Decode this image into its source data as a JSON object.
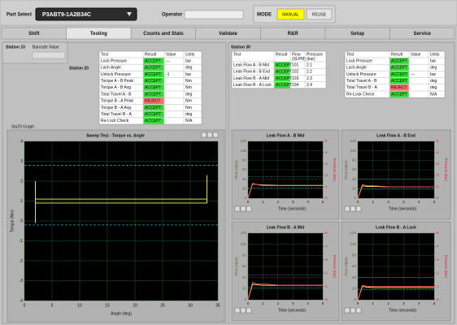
{
  "header": {
    "part_select_label": "Part Select",
    "part_number": "P3ABT9-1A2B34C",
    "operator_label": "Operator",
    "mode_label": "MODE",
    "mode_buttons": [
      "MANUAL",
      "REUSE"
    ]
  },
  "tabs": [
    "Shift",
    "Testing",
    "Counts and Stats",
    "Validate",
    "R&R",
    "Setup",
    "Service"
  ],
  "active_tab": 1,
  "station10": {
    "title": "Station 10",
    "barcode_label": "Barcode Value"
  },
  "station20": {
    "title": "Station 20",
    "table": {
      "columns": [
        "Test",
        "Result",
        "Value",
        "Units"
      ],
      "rows": [
        [
          "Lock Pressure",
          "ACCEPT",
          "---",
          "bar"
        ],
        [
          "Lach Angle",
          "ACCEPT",
          null,
          "deg"
        ],
        [
          "Unlock Pressure",
          "ACCEPT",
          "-1",
          "bar"
        ],
        [
          "Torque A - B Peak",
          "ACCEPT",
          null,
          "Nm"
        ],
        [
          "Torque A - B Avg.",
          "ACCEPT",
          null,
          "Nm"
        ],
        [
          "Total Travel A - B",
          "ACCEPT",
          null,
          "deg"
        ],
        [
          "Torque B - A Peak",
          "REJECT",
          null,
          "Nm"
        ],
        [
          "Torque B - A Avg.",
          "ACCEPT",
          null,
          "Nm"
        ],
        [
          "Total Travel B - A",
          "ACCEPT",
          null,
          "deg"
        ],
        [
          "Re-Lock Check",
          "ACCEPT",
          null,
          "N/A"
        ]
      ],
      "result_colors": [
        "#33dd33",
        "#33dd33",
        "#33dd33",
        "#33dd33",
        "#33dd33",
        "#33dd33",
        "#ff6b6b",
        "#33dd33",
        "#33dd33",
        "#33dd33"
      ]
    },
    "graph_label": "Sts20 Graph",
    "graph": {
      "title": "Sweep Test - Torque vs. Angle",
      "x_label": "Angle (deg)",
      "y_label": "Torque (Nm)",
      "xlim": [
        0,
        35
      ],
      "xticks": [
        0,
        5,
        10,
        15,
        20,
        25,
        30,
        35
      ],
      "ylim": [
        -4,
        4
      ],
      "yticks": [
        -4,
        -3,
        -2,
        -1,
        0,
        1,
        2,
        3,
        4
      ],
      "trace": {
        "x": [
          2,
          2,
          2,
          33,
          33,
          33,
          2
        ],
        "y": [
          -0.1,
          2,
          1.1,
          1.1,
          2.3,
          0.9,
          0.9
        ],
        "color": "#ffff55"
      },
      "limits": [
        2.8,
        -0.2
      ],
      "limit_color": "#3aa0c0"
    }
  },
  "station30": {
    "title": "Station 30",
    "leak_table": {
      "columns": [
        "Test",
        "Result",
        [
          "Flow",
          "(SLPM)"
        ],
        [
          "Pressure",
          "(bar)"
        ]
      ],
      "rows": [
        [
          "Leak Flow A - B Mid",
          "ACCEPT",
          "101",
          "2.1"
        ],
        [
          "Leak Flow A - B End",
          "ACCEPT",
          "102",
          "2.2"
        ],
        [
          "Leak Flow B - A Mid",
          "ACCEPT",
          "103",
          "2.3"
        ],
        [
          "Leak Flow B - A Lock",
          "ACCEPT",
          "104",
          "2.4"
        ]
      ],
      "result_colors": [
        "#33dd33",
        "#33dd33",
        "#33dd33",
        "#33dd33"
      ]
    },
    "table": {
      "columns": [
        "Test",
        "Result",
        "Value",
        "Units"
      ],
      "rows": [
        [
          "Lock Pressure",
          "ACCEPT",
          null,
          "bar"
        ],
        [
          "Lach Angle",
          "ACCEPT",
          null,
          "deg"
        ],
        [
          "Unlock Pressure",
          "ACCEPT",
          "---",
          "bar"
        ],
        [
          "Total Travel A - B",
          "ACCEPT",
          null,
          "deg"
        ],
        [
          "Total Travel B - A",
          "REJECT",
          null,
          "deg"
        ],
        [
          "Re-Lock Check",
          "ACCEPT",
          null,
          "N/A"
        ]
      ],
      "result_colors": [
        "#33dd33",
        "#33dd33",
        "#33dd33",
        "#33dd33",
        "#ff6b6b",
        "#33dd33"
      ]
    },
    "graphs": [
      {
        "title": "Leak Flow A - B Mid",
        "x_label": "Time (seconds)",
        "y_label": "Flow (slpm)",
        "y2_label": "Pressure (bar)",
        "xlim": [
          0,
          5
        ],
        "xticks": [
          0,
          1,
          2,
          3,
          4,
          5
        ],
        "ylim": [
          0,
          120
        ],
        "yticks": [
          0,
          20,
          40,
          60,
          80,
          100,
          120
        ],
        "y2lim": [
          0,
          5
        ],
        "y2ticks": [
          0,
          1,
          2,
          3,
          4,
          5
        ],
        "x": [
          0,
          0.3,
          0.6,
          1,
          2,
          3,
          4,
          5
        ],
        "flow": {
          "values": [
            0,
            30,
            29,
            28,
            27,
            27,
            27,
            27
          ],
          "color": "#ffff66"
        },
        "pressure": {
          "values": [
            0,
            1.3,
            1.2,
            1.1,
            1.1,
            1.1,
            1.1,
            1.1
          ],
          "color": "#ff5050",
          "axis": "y2"
        },
        "limits": [
          45,
          22
        ],
        "limit_color": "#3aa0c0"
      },
      {
        "title": "Leak Flow A - B End",
        "x_label": "Time (seconds)",
        "y_label": "Flow (slpm)",
        "y2_label": "Pressure (bar)",
        "xlim": [
          0,
          5
        ],
        "xticks": [
          0,
          1,
          2,
          3,
          4,
          5
        ],
        "ylim": [
          0,
          120
        ],
        "yticks": [
          0,
          20,
          40,
          60,
          80,
          100,
          120
        ],
        "y2lim": [
          0,
          5
        ],
        "y2ticks": [
          0,
          1,
          2,
          3,
          4,
          5
        ],
        "x": [
          0,
          0.3,
          0.6,
          1,
          2,
          3,
          4,
          5
        ],
        "flow": {
          "values": [
            0,
            26,
            25,
            25,
            24,
            24,
            24,
            24
          ],
          "color": "#ffff66"
        },
        "pressure": {
          "values": [
            0,
            1.2,
            1.1,
            1.1,
            1,
            1,
            1,
            1
          ],
          "color": "#ff5050",
          "axis": "y2"
        },
        "limits": [
          40,
          20
        ],
        "limit_color": "#3aa0c0"
      },
      {
        "title": "Leak Flow B - A Mid",
        "x_label": "Time (seconds)",
        "y_label": "Flow (slpm)",
        "y2_label": "Pressure (bar)",
        "xlim": [
          0,
          5
        ],
        "xticks": [
          0,
          1,
          2,
          3,
          4,
          5
        ],
        "ylim": [
          0,
          120
        ],
        "yticks": [
          0,
          20,
          40,
          60,
          80,
          100,
          120
        ],
        "y2lim": [
          0,
          5
        ],
        "y2ticks": [
          0,
          1,
          2,
          3,
          4,
          5
        ],
        "x": [
          0,
          0.3,
          0.6,
          1,
          2,
          3,
          4,
          5
        ],
        "flow": {
          "values": [
            0,
            28,
            27,
            26,
            26,
            26,
            26,
            26
          ],
          "color": "#ffff66"
        },
        "pressure": {
          "values": [
            0,
            1.3,
            1.2,
            1.2,
            1.1,
            1.1,
            1.1,
            1.1
          ],
          "color": "#ff5050",
          "axis": "y2"
        },
        "limits": [
          45,
          22
        ],
        "limit_color": "#3aa0c0"
      },
      {
        "title": "Leak Flow B - A Lock",
        "x_label": "Time (seconds)",
        "y_label": "Flow (slpm)",
        "y2_label": "Pressure (bar)",
        "xlim": [
          0,
          5
        ],
        "xticks": [
          0,
          1,
          2,
          3,
          4,
          5
        ],
        "ylim": [
          0,
          120
        ],
        "yticks": [
          0,
          20,
          40,
          60,
          80,
          100,
          120
        ],
        "y2lim": [
          0,
          5
        ],
        "y2ticks": [
          0,
          1,
          2,
          3,
          4,
          5
        ],
        "x": [
          0,
          0.3,
          0.6,
          1,
          2,
          3,
          4,
          5
        ],
        "flow": {
          "values": [
            0,
            24,
            23,
            22,
            22,
            22,
            22,
            22
          ],
          "color": "#ffff66"
        },
        "pressure": {
          "values": [
            0,
            1.1,
            1,
            1,
            1,
            1,
            1,
            1
          ],
          "color": "#ff5050",
          "axis": "y2"
        },
        "limits": [
          40,
          18
        ],
        "limit_color": "#3aa0c0"
      }
    ]
  }
}
